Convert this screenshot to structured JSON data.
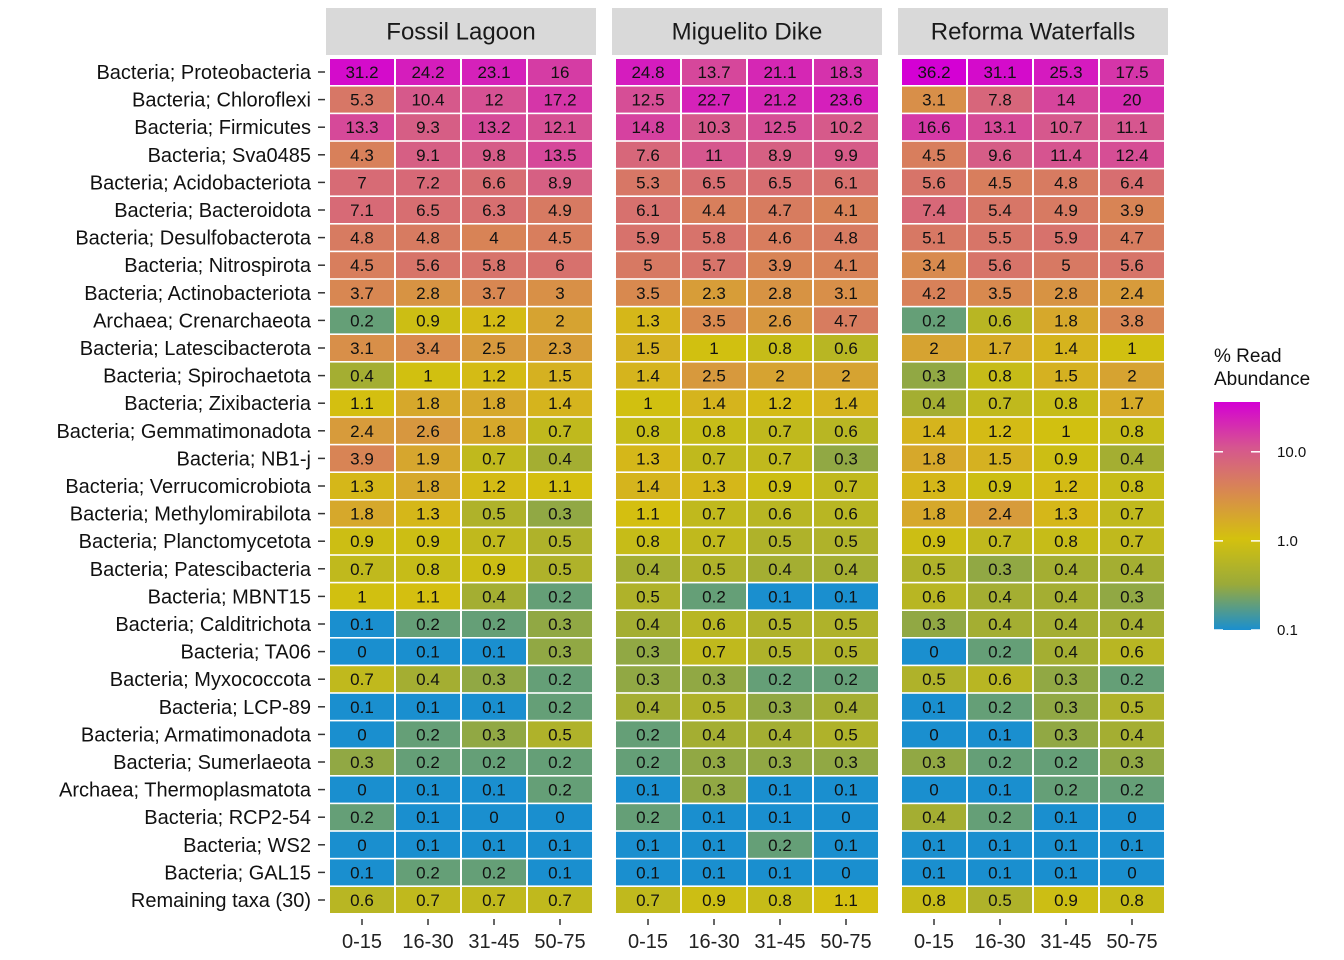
{
  "chart_data": {
    "type": "heatmap",
    "legend": {
      "title_lines": [
        "% Read",
        "Abundance"
      ],
      "scale": "log",
      "range": [
        0.1,
        36.2
      ],
      "ticks": [
        {
          "value": 10,
          "label": "10.0"
        },
        {
          "value": 1,
          "label": "1.0"
        },
        {
          "value": 0.1,
          "label": "0.1"
        }
      ],
      "colors": [
        "#1a8fcf",
        "#9aaa3a",
        "#d4c10e",
        "#d88a4e",
        "#d6568f",
        "#d400d4"
      ],
      "placement": "right"
    },
    "columns": [
      "0-15",
      "16-30",
      "31-45",
      "50-75"
    ],
    "rows": [
      "Bacteria; Proteobacteria",
      "Bacteria; Chloroflexi",
      "Bacteria; Firmicutes",
      "Bacteria; Sva0485",
      "Bacteria; Acidobacteriota",
      "Bacteria; Bacteroidota",
      "Bacteria; Desulfobacterota",
      "Bacteria; Nitrospirota",
      "Bacteria; Actinobacteriota",
      "Archaea; Crenarchaeota",
      "Bacteria; Latescibacterota",
      "Bacteria; Spirochaetota",
      "Bacteria; Zixibacteria",
      "Bacteria; Gemmatimonadota",
      "Bacteria; NB1-j",
      "Bacteria; Verrucomicrobiota",
      "Bacteria; Methylomirabilota",
      "Bacteria; Planctomycetota",
      "Bacteria; Patescibacteria",
      "Bacteria; MBNT15",
      "Bacteria; Calditrichota",
      "Bacteria; TA06",
      "Bacteria; Myxococcota",
      "Bacteria; LCP-89",
      "Bacteria; Armatimonadota",
      "Bacteria; Sumerlaeota",
      "Archaea; Thermoplasmatota",
      "Bacteria; RCP2-54",
      "Bacteria; WS2",
      "Bacteria; GAL15",
      "Remaining taxa (30)"
    ],
    "facets": [
      {
        "title": "Fossil Lagoon",
        "values": [
          [
            31.2,
            24.2,
            23.1,
            16
          ],
          [
            5.3,
            10.4,
            12,
            17.2
          ],
          [
            13.3,
            9.3,
            13.2,
            12.1
          ],
          [
            4.3,
            9.1,
            9.8,
            13.5
          ],
          [
            7,
            7.2,
            6.6,
            8.9
          ],
          [
            7.1,
            6.5,
            6.3,
            4.9
          ],
          [
            4.8,
            4.8,
            4,
            4.5
          ],
          [
            4.5,
            5.6,
            5.8,
            6
          ],
          [
            3.7,
            2.8,
            3.7,
            3
          ],
          [
            0.2,
            0.9,
            1.2,
            2
          ],
          [
            3.1,
            3.4,
            2.5,
            2.3
          ],
          [
            0.4,
            1,
            1.2,
            1.5
          ],
          [
            1.1,
            1.8,
            1.8,
            1.4
          ],
          [
            2.4,
            2.6,
            1.8,
            0.7
          ],
          [
            3.9,
            1.9,
            0.7,
            0.4
          ],
          [
            1.3,
            1.8,
            1.2,
            1.1
          ],
          [
            1.8,
            1.3,
            0.5,
            0.3
          ],
          [
            0.9,
            0.9,
            0.7,
            0.5
          ],
          [
            0.7,
            0.8,
            0.9,
            0.5
          ],
          [
            1,
            1.1,
            0.4,
            0.2
          ],
          [
            0.1,
            0.2,
            0.2,
            0.3
          ],
          [
            0,
            0.1,
            0.1,
            0.3
          ],
          [
            0.7,
            0.4,
            0.3,
            0.2
          ],
          [
            0.1,
            0.1,
            0.1,
            0.2
          ],
          [
            0,
            0.2,
            0.3,
            0.5
          ],
          [
            0.3,
            0.2,
            0.2,
            0.2
          ],
          [
            0,
            0.1,
            0.1,
            0.2
          ],
          [
            0.2,
            0.1,
            0,
            0
          ],
          [
            0,
            0.1,
            0.1,
            0.1
          ],
          [
            0.1,
            0.2,
            0.2,
            0.1
          ],
          [
            0.6,
            0.7,
            0.7,
            0.7
          ]
        ]
      },
      {
        "title": "Miguelito Dike",
        "values": [
          [
            24.8,
            13.7,
            21.1,
            18.3
          ],
          [
            12.5,
            22.7,
            21.2,
            23.6
          ],
          [
            14.8,
            10.3,
            12.5,
            10.2
          ],
          [
            7.6,
            11,
            8.9,
            9.9
          ],
          [
            5.3,
            6.5,
            6.5,
            6.1
          ],
          [
            6.1,
            4.4,
            4.7,
            4.1
          ],
          [
            5.9,
            5.8,
            4.6,
            4.8
          ],
          [
            5,
            5.7,
            3.9,
            4.1
          ],
          [
            3.5,
            2.3,
            2.8,
            3.1
          ],
          [
            1.3,
            3.5,
            2.6,
            4.7
          ],
          [
            1.5,
            1,
            0.8,
            0.6
          ],
          [
            1.4,
            2.5,
            2,
            2
          ],
          [
            1,
            1.4,
            1.2,
            1.4
          ],
          [
            0.8,
            0.8,
            0.7,
            0.6
          ],
          [
            1.3,
            0.7,
            0.7,
            0.3
          ],
          [
            1.4,
            1.3,
            0.9,
            0.7
          ],
          [
            1.1,
            0.7,
            0.6,
            0.6
          ],
          [
            0.8,
            0.7,
            0.5,
            0.5
          ],
          [
            0.4,
            0.5,
            0.4,
            0.4
          ],
          [
            0.5,
            0.2,
            0.1,
            0.1
          ],
          [
            0.4,
            0.6,
            0.5,
            0.5
          ],
          [
            0.3,
            0.7,
            0.5,
            0.5
          ],
          [
            0.3,
            0.3,
            0.2,
            0.2
          ],
          [
            0.4,
            0.5,
            0.3,
            0.4
          ],
          [
            0.2,
            0.4,
            0.4,
            0.5
          ],
          [
            0.2,
            0.3,
            0.3,
            0.3
          ],
          [
            0.1,
            0.3,
            0.1,
            0.1
          ],
          [
            0.2,
            0.1,
            0.1,
            0
          ],
          [
            0.1,
            0.1,
            0.2,
            0.1
          ],
          [
            0.1,
            0.1,
            0.1,
            0
          ],
          [
            0.7,
            0.9,
            0.8,
            1.1
          ]
        ]
      },
      {
        "title": "Reforma Waterfalls",
        "values": [
          [
            36.2,
            31.1,
            25.3,
            17.5
          ],
          [
            3.1,
            7.8,
            14,
            20
          ],
          [
            16.6,
            13.1,
            10.7,
            11.1
          ],
          [
            4.5,
            9.6,
            11.4,
            12.4
          ],
          [
            5.6,
            4.5,
            4.8,
            6.4
          ],
          [
            7.4,
            5.4,
            4.9,
            3.9
          ],
          [
            5.1,
            5.5,
            5.9,
            4.7
          ],
          [
            3.4,
            5.6,
            5,
            5.6
          ],
          [
            4.2,
            3.5,
            2.8,
            2.4
          ],
          [
            0.2,
            0.6,
            1.8,
            3.8
          ],
          [
            2,
            1.7,
            1.4,
            1
          ],
          [
            0.3,
            0.8,
            1.5,
            2
          ],
          [
            0.4,
            0.7,
            0.8,
            1.7
          ],
          [
            1.4,
            1.2,
            1,
            0.8
          ],
          [
            1.8,
            1.5,
            0.9,
            0.4
          ],
          [
            1.3,
            0.9,
            1.2,
            0.8
          ],
          [
            1.8,
            2.4,
            1.3,
            0.7
          ],
          [
            0.9,
            0.7,
            0.8,
            0.7
          ],
          [
            0.5,
            0.3,
            0.4,
            0.4
          ],
          [
            0.6,
            0.4,
            0.4,
            0.3
          ],
          [
            0.3,
            0.4,
            0.4,
            0.4
          ],
          [
            0,
            0.2,
            0.4,
            0.6
          ],
          [
            0.5,
            0.6,
            0.3,
            0.2
          ],
          [
            0.1,
            0.2,
            0.3,
            0.5
          ],
          [
            0,
            0.1,
            0.3,
            0.4
          ],
          [
            0.3,
            0.2,
            0.2,
            0.3
          ],
          [
            0,
            0.1,
            0.2,
            0.2
          ],
          [
            0.4,
            0.2,
            0.1,
            0
          ],
          [
            0.1,
            0.1,
            0.1,
            0.1
          ],
          [
            0.1,
            0.1,
            0.1,
            0
          ],
          [
            0.8,
            0.5,
            0.9,
            0.8
          ]
        ]
      }
    ]
  }
}
